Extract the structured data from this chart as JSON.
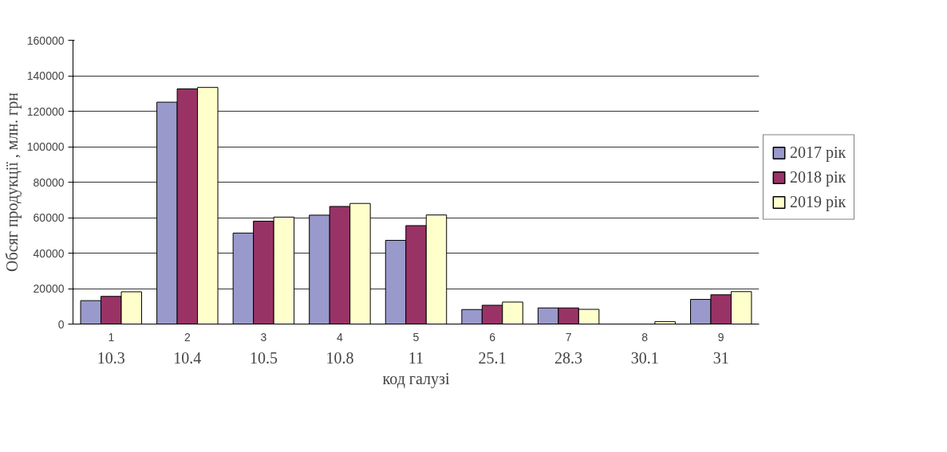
{
  "chart_data": {
    "type": "bar",
    "xlabel": "код галузі",
    "ylabel": "Обсяг продукції , млн. грн",
    "categories": [
      "1",
      "2",
      "3",
      "4",
      "5",
      "6",
      "7",
      "8",
      "9"
    ],
    "series": [
      {
        "name": "2017 рік",
        "color": "#9999cc",
        "values": [
          13200,
          125100,
          51300,
          61400,
          47200,
          8200,
          9100,
          null,
          13900
        ]
      },
      {
        "name": "2018 рік",
        "color": "#993366",
        "values": [
          15600,
          132600,
          58000,
          66300,
          55500,
          10600,
          9100,
          null,
          16500
        ]
      },
      {
        "name": "2019 рік",
        "color": "#ffffcc",
        "values": [
          18200,
          133400,
          60300,
          68000,
          61500,
          12400,
          8300,
          1400,
          18300
        ]
      }
    ],
    "annotations": [
      "10.3",
      "10.4",
      "10.5",
      "10.8",
      "11",
      "25.1",
      "28.3",
      "30.1",
      "31"
    ],
    "ylim": [
      0,
      160000
    ],
    "yticks": [
      0,
      20000,
      40000,
      60000,
      80000,
      100000,
      120000,
      140000,
      160000
    ],
    "grid": "y",
    "legend": "right"
  }
}
